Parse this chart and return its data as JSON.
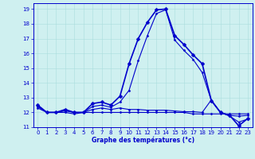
{
  "title": "",
  "xlabel": "Graphe des températures (°c)",
  "ylabel": "",
  "background_color": "#cff0f0",
  "grid_color": "#aadddd",
  "line_color": "#0000cc",
  "xlim": [
    -0.5,
    23.5
  ],
  "ylim": [
    11,
    19.4
  ],
  "yticks": [
    11,
    12,
    13,
    14,
    15,
    16,
    17,
    18,
    19
  ],
  "xticks": [
    0,
    1,
    2,
    3,
    4,
    5,
    6,
    7,
    8,
    9,
    10,
    11,
    12,
    13,
    14,
    15,
    16,
    17,
    18,
    19,
    20,
    21,
    22,
    23
  ],
  "series": [
    {
      "x": [
        0,
        1,
        2,
        3,
        4,
        5,
        6,
        7,
        8,
        9,
        10,
        11,
        12,
        13,
        14,
        15,
        16,
        17,
        18,
        19,
        20,
        21,
        22,
        23
      ],
      "y": [
        12.5,
        12.0,
        12.0,
        12.2,
        12.0,
        12.0,
        12.6,
        12.7,
        12.5,
        13.1,
        15.3,
        17.0,
        18.1,
        18.95,
        19.0,
        17.2,
        16.6,
        15.9,
        15.3,
        12.8,
        12.0,
        11.8,
        11.1,
        11.6
      ],
      "color": "#0000cc",
      "marker": "D",
      "markersize": 2.5,
      "linewidth": 1.2
    },
    {
      "x": [
        0,
        1,
        2,
        3,
        4,
        5,
        6,
        7,
        8,
        9,
        10,
        11,
        12,
        13,
        14,
        15,
        16,
        17,
        18,
        19,
        20,
        21,
        22,
        23
      ],
      "y": [
        12.4,
        12.0,
        12.0,
        12.0,
        11.9,
        12.0,
        12.0,
        12.0,
        12.0,
        12.0,
        12.0,
        12.0,
        12.0,
        12.0,
        12.0,
        12.0,
        12.0,
        11.9,
        11.9,
        11.9,
        11.9,
        11.9,
        11.9,
        11.9
      ],
      "color": "#0000cc",
      "marker": "D",
      "markersize": 1.5,
      "linewidth": 0.8
    },
    {
      "x": [
        0,
        1,
        2,
        3,
        4,
        5,
        6,
        7,
        8,
        9,
        10,
        11,
        12,
        13,
        14,
        15,
        16,
        17,
        18,
        19,
        20,
        21,
        22,
        23
      ],
      "y": [
        12.3,
        12.0,
        12.0,
        12.1,
        12.0,
        12.0,
        12.2,
        12.3,
        12.2,
        12.3,
        12.2,
        12.2,
        12.15,
        12.15,
        12.15,
        12.1,
        12.05,
        12.05,
        12.0,
        12.85,
        12.0,
        11.8,
        11.75,
        11.8
      ],
      "color": "#0000cc",
      "marker": "D",
      "markersize": 1.5,
      "linewidth": 0.8
    },
    {
      "x": [
        0,
        1,
        2,
        3,
        4,
        5,
        6,
        7,
        8,
        9,
        10,
        11,
        12,
        13,
        14,
        15,
        16,
        17,
        18,
        19,
        20,
        21,
        22,
        23
      ],
      "y": [
        12.45,
        12.0,
        12.0,
        12.15,
        12.0,
        12.0,
        12.4,
        12.5,
        12.35,
        12.7,
        13.5,
        15.5,
        17.2,
        18.7,
        18.95,
        16.9,
        16.2,
        15.6,
        14.7,
        12.8,
        12.0,
        11.75,
        11.35,
        11.55
      ],
      "color": "#0000cc",
      "marker": "D",
      "markersize": 1.5,
      "linewidth": 0.8
    }
  ]
}
